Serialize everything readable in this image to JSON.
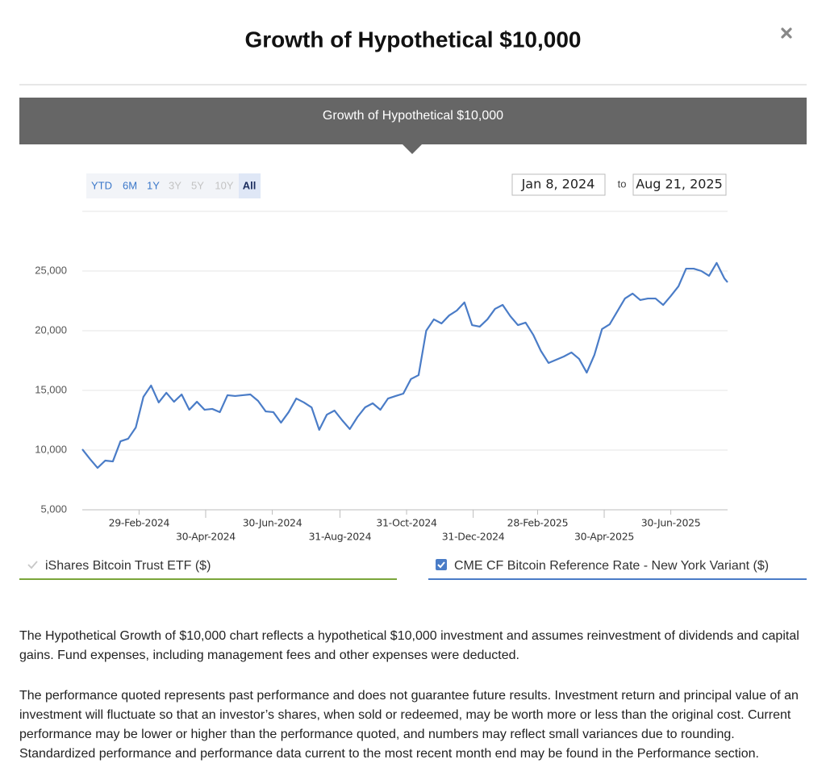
{
  "header": {
    "title": "Growth of Hypothetical $10,000"
  },
  "banner": {
    "title": "Growth of Hypothetical $10,000"
  },
  "range_selector": {
    "buttons": [
      {
        "label": "YTD",
        "state": "enabled"
      },
      {
        "label": "6M",
        "state": "enabled"
      },
      {
        "label": "1Y",
        "state": "enabled"
      },
      {
        "label": "3Y",
        "state": "disabled"
      },
      {
        "label": "5Y",
        "state": "disabled"
      },
      {
        "label": "10Y",
        "state": "disabled"
      },
      {
        "label": "All",
        "state": "selected"
      }
    ],
    "from": "Jan 8, 2024",
    "separator": "to",
    "to": "Aug 21, 2025"
  },
  "chart_data": {
    "type": "line",
    "x": [
      "2024-01-08",
      "2024-01-15",
      "2024-01-22",
      "2024-01-29",
      "2024-02-05",
      "2024-02-12",
      "2024-02-19",
      "2024-02-26",
      "2024-03-04",
      "2024-03-11",
      "2024-03-18",
      "2024-03-25",
      "2024-04-01",
      "2024-04-08",
      "2024-04-15",
      "2024-04-22",
      "2024-04-29",
      "2024-05-06",
      "2024-05-13",
      "2024-05-20",
      "2024-05-27",
      "2024-06-03",
      "2024-06-10",
      "2024-06-17",
      "2024-06-24",
      "2024-07-01",
      "2024-07-08",
      "2024-07-15",
      "2024-07-22",
      "2024-07-29",
      "2024-08-05",
      "2024-08-12",
      "2024-08-19",
      "2024-08-26",
      "2024-09-02",
      "2024-09-09",
      "2024-09-16",
      "2024-09-23",
      "2024-09-30",
      "2024-10-07",
      "2024-10-14",
      "2024-10-21",
      "2024-10-28",
      "2024-11-04",
      "2024-11-11",
      "2024-11-18",
      "2024-11-25",
      "2024-12-02",
      "2024-12-09",
      "2024-12-16",
      "2024-12-23",
      "2024-12-30",
      "2025-01-06",
      "2025-01-13",
      "2025-01-20",
      "2025-01-27",
      "2025-02-03",
      "2025-02-10",
      "2025-02-17",
      "2025-02-24",
      "2025-03-03",
      "2025-03-10",
      "2025-03-17",
      "2025-03-24",
      "2025-03-31",
      "2025-04-07",
      "2025-04-14",
      "2025-04-21",
      "2025-04-28",
      "2025-05-05",
      "2025-05-12",
      "2025-05-19",
      "2025-05-26",
      "2025-06-02",
      "2025-06-09",
      "2025-06-16",
      "2025-06-23",
      "2025-06-30",
      "2025-07-07",
      "2025-07-14",
      "2025-07-21",
      "2025-07-28",
      "2025-08-04",
      "2025-08-11",
      "2025-08-18",
      "2025-08-21"
    ],
    "series": [
      {
        "name": "iShares Bitcoin Trust ETF ($)",
        "color": "#7aa53a",
        "visible": false
      },
      {
        "name": "CME CF Bitcoin Reference Rate - New York Variant ($)",
        "color": "#4a7cc7",
        "visible": true,
        "values": [
          10070,
          9260,
          8510,
          9120,
          9050,
          10740,
          10950,
          11890,
          14460,
          15410,
          13990,
          14800,
          14050,
          14660,
          13380,
          14050,
          13380,
          13450,
          13180,
          14600,
          14530,
          14600,
          14660,
          14120,
          13240,
          13180,
          12300,
          13180,
          14320,
          13990,
          13580,
          11700,
          12970,
          13310,
          12500,
          11760,
          12770,
          13580,
          13920,
          13380,
          14320,
          14530,
          14730,
          15950,
          16280,
          20000,
          20950,
          20610,
          21280,
          21690,
          22370,
          20470,
          20340,
          20950,
          21830,
          22160,
          21220,
          20470,
          20680,
          19660,
          18310,
          17300,
          17570,
          17840,
          18180,
          17640,
          16490,
          17970,
          20140,
          20540,
          21620,
          22700,
          23110,
          22570,
          22700,
          22700,
          22160,
          22910,
          23720,
          25200,
          25200,
          25000,
          24600,
          25680,
          24390,
          24060
        ]
      }
    ],
    "xlim": [
      "2024-01-08",
      "2025-08-21"
    ],
    "xticks": [
      {
        "value": "2024-02-29",
        "label": "29-Feb-2024"
      },
      {
        "value": "2024-04-30",
        "label": "30-Apr-2024"
      },
      {
        "value": "2024-06-30",
        "label": "30-Jun-2024"
      },
      {
        "value": "2024-08-31",
        "label": "31-Aug-2024"
      },
      {
        "value": "2024-10-31",
        "label": "31-Oct-2024"
      },
      {
        "value": "2024-12-31",
        "label": "31-Dec-2024"
      },
      {
        "value": "2025-02-28",
        "label": "28-Feb-2025"
      },
      {
        "value": "2025-04-30",
        "label": "30-Apr-2025"
      },
      {
        "value": "2025-06-30",
        "label": "30-Jun-2025"
      }
    ],
    "ylim": [
      5000,
      30000
    ],
    "yticks": [
      {
        "value": 5000,
        "label": "5,000"
      },
      {
        "value": 10000,
        "label": "10,000"
      },
      {
        "value": 15000,
        "label": "15,000"
      },
      {
        "value": 20000,
        "label": "20,000"
      },
      {
        "value": 25000,
        "label": "25,000"
      }
    ],
    "grid": true
  },
  "disclosures": [
    "The Hypothetical Growth of $10,000 chart reflects a hypothetical $10,000 investment and assumes reinvestment of dividends and capital gains. Fund expenses, including management fees and other expenses were deducted.",
    "The performance quoted represents past performance and does not guarantee future results. Investment return and principal value of an investment will fluctuate so that an investor’s shares, when sold or redeemed, may be worth more or less than the original cost. Current performance may be lower or higher than the performance quoted, and numbers may reflect small variances due to rounding. Standardized performance and performance data current to the most recent month end may be found in the Performance section."
  ]
}
